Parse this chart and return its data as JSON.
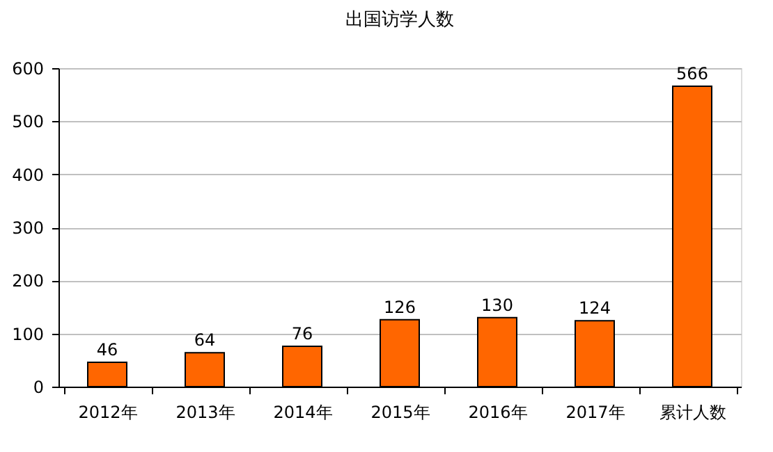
{
  "chart_data": {
    "type": "bar",
    "title": "出国访学人数",
    "categories": [
      "2012年",
      "2013年",
      "2014年",
      "2015年",
      "2016年",
      "2017年",
      "累计人数"
    ],
    "values": [
      46,
      64,
      76,
      126,
      130,
      124,
      566
    ],
    "color": "#ff6600",
    "ylim": [
      0,
      600
    ],
    "yticks": [
      0,
      100,
      200,
      300,
      400,
      500,
      600
    ],
    "grid": "y",
    "data_labels": true
  }
}
